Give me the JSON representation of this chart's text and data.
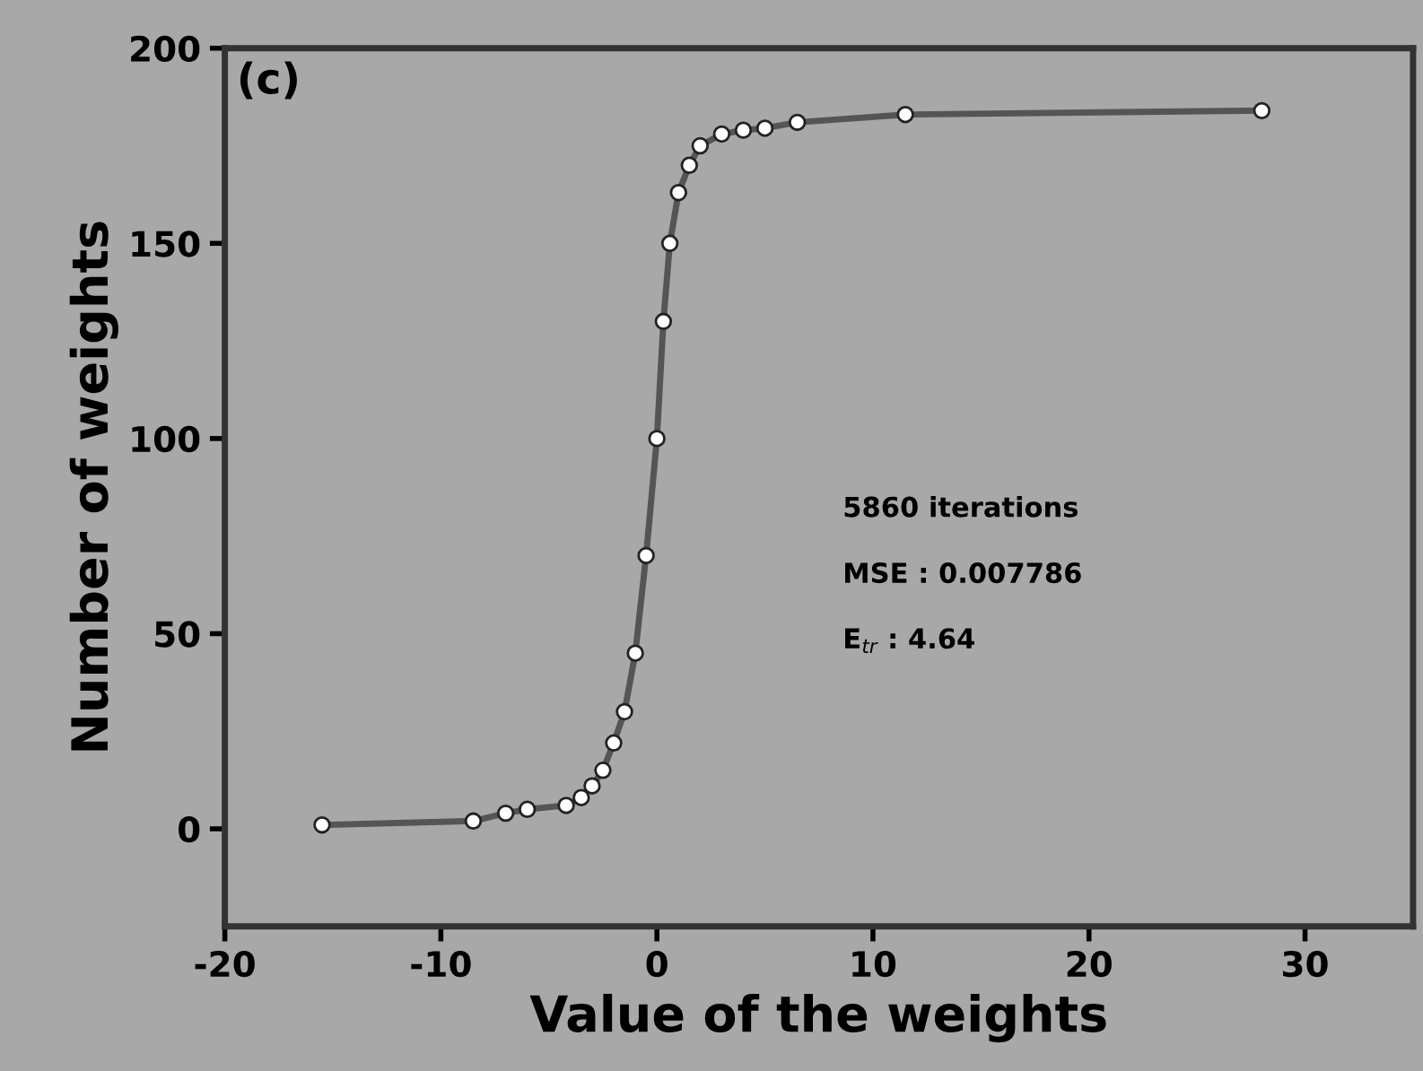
{
  "chart_data": {
    "type": "line",
    "xlabel": "Value of the weights",
    "ylabel": "Number of weights",
    "annotations": [
      "(c)",
      "5860 iterations",
      "MSE : 0.007786",
      "E$_{tr}$ : 4.64"
    ],
    "series": [
      {
        "color": "#555555",
        "x": [
          -15.5,
          -8.5,
          -7,
          -6,
          -4.2,
          -3.5,
          -3,
          -2.5,
          -2,
          -1.5,
          -1,
          -0.5,
          0,
          0.3,
          0.6,
          1,
          1.5,
          2,
          3,
          4,
          5,
          6.5,
          11.5,
          28
        ],
        "values": [
          1,
          2,
          4,
          5,
          6,
          8,
          11,
          15,
          22,
          30,
          45,
          70,
          100,
          130,
          150,
          163,
          170,
          175,
          178,
          179,
          179.5,
          181,
          183,
          184
        ]
      }
    ],
    "marker": "circle",
    "line_style": "solid",
    "grid": false,
    "legend": false,
    "xlim": [
      -20,
      35
    ],
    "ylim": [
      -25,
      200
    ],
    "xticks": [
      -20,
      -10,
      0,
      10,
      20,
      30
    ],
    "yticks": [
      0,
      50,
      100,
      150,
      200
    ]
  }
}
